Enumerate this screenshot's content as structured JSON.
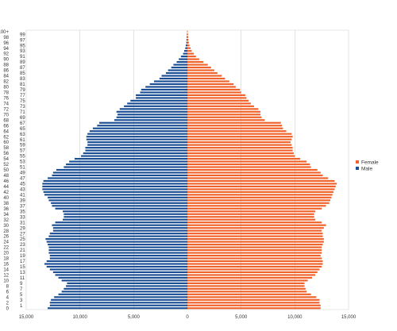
{
  "chart_data": {
    "type": "bar",
    "orientation": "horizontal",
    "layout": "population-pyramid",
    "grid": true,
    "legend_position": "right",
    "xlim": [
      -15000,
      15000
    ],
    "x_tick_values": [
      -15000,
      -10000,
      -5000,
      0,
      5000,
      10000,
      15000
    ],
    "x_tick_labels": [
      "15,000",
      "10,000",
      "5,000",
      "0",
      "5,000",
      "10,000",
      "15,000"
    ],
    "age_labels": [
      "0",
      "1",
      "2",
      "3",
      "4",
      "5",
      "6",
      "7",
      "8",
      "9",
      "10",
      "11",
      "12",
      "13",
      "14",
      "15",
      "16",
      "17",
      "18",
      "19",
      "20",
      "21",
      "22",
      "23",
      "24",
      "25",
      "26",
      "27",
      "28",
      "29",
      "30",
      "31",
      "32",
      "33",
      "34",
      "35",
      "36",
      "37",
      "38",
      "39",
      "40",
      "41",
      "42",
      "43",
      "44",
      "45",
      "46",
      "47",
      "48",
      "49",
      "50",
      "51",
      "52",
      "53",
      "54",
      "55",
      "56",
      "57",
      "58",
      "59",
      "60",
      "61",
      "62",
      "63",
      "64",
      "65",
      "66",
      "67",
      "68",
      "69",
      "70",
      "71",
      "72",
      "73",
      "74",
      "75",
      "76",
      "77",
      "78",
      "79",
      "80",
      "81",
      "82",
      "83",
      "84",
      "85",
      "86",
      "87",
      "88",
      "89",
      "90",
      "91",
      "92",
      "93",
      "94",
      "95",
      "96",
      "97",
      "98",
      "99",
      "100+"
    ],
    "series": [
      {
        "name": "Female",
        "color": "#f0622a",
        "values": [
          12400,
          12400,
          12300,
          12300,
          12000,
          11500,
          11100,
          11000,
          10900,
          10900,
          11200,
          11600,
          11900,
          12100,
          12300,
          12500,
          12600,
          12600,
          12500,
          12400,
          12500,
          12500,
          12500,
          12600,
          12700,
          12700,
          12600,
          12600,
          12500,
          12700,
          12900,
          12500,
          11900,
          11800,
          11800,
          11900,
          12500,
          12900,
          13200,
          13300,
          13400,
          13500,
          13600,
          13700,
          13800,
          13900,
          13700,
          13100,
          12600,
          12400,
          12100,
          11500,
          11400,
          11100,
          10500,
          10000,
          9900,
          9800,
          9800,
          9700,
          9600,
          9700,
          9800,
          9700,
          9200,
          8900,
          8800,
          8700,
          7200,
          6900,
          6800,
          6800,
          6600,
          6200,
          5900,
          5700,
          5500,
          5400,
          5000,
          4900,
          4500,
          4300,
          3900,
          3500,
          3200,
          2800,
          2500,
          2200,
          1900,
          1500,
          1100,
          800,
          600,
          400,
          300,
          200,
          150,
          100,
          80,
          60,
          30
        ]
      },
      {
        "name": "Male",
        "color": "#1a4e94",
        "values": [
          13000,
          12800,
          12800,
          12700,
          12400,
          12000,
          11700,
          11500,
          11300,
          11200,
          11700,
          12000,
          12300,
          12500,
          12800,
          13100,
          13300,
          13100,
          12800,
          12800,
          12900,
          12900,
          12900,
          13000,
          13100,
          13200,
          12900,
          12800,
          12500,
          12500,
          12600,
          12300,
          11600,
          11500,
          11500,
          11600,
          12300,
          12600,
          12700,
          12900,
          13000,
          13300,
          13400,
          13500,
          13500,
          13500,
          13400,
          13000,
          12600,
          12500,
          12200,
          11500,
          11300,
          11000,
          10500,
          9900,
          9700,
          9500,
          9500,
          9300,
          9300,
          9400,
          9400,
          9300,
          9100,
          8800,
          8400,
          8200,
          6800,
          6600,
          6500,
          6600,
          6300,
          5900,
          5600,
          5300,
          4800,
          4800,
          4400,
          4300,
          3900,
          3500,
          3100,
          2600,
          2400,
          2000,
          1800,
          1500,
          1300,
          1000,
          800,
          600,
          400,
          300,
          200,
          150,
          100,
          80,
          60,
          40,
          20
        ]
      }
    ]
  }
}
